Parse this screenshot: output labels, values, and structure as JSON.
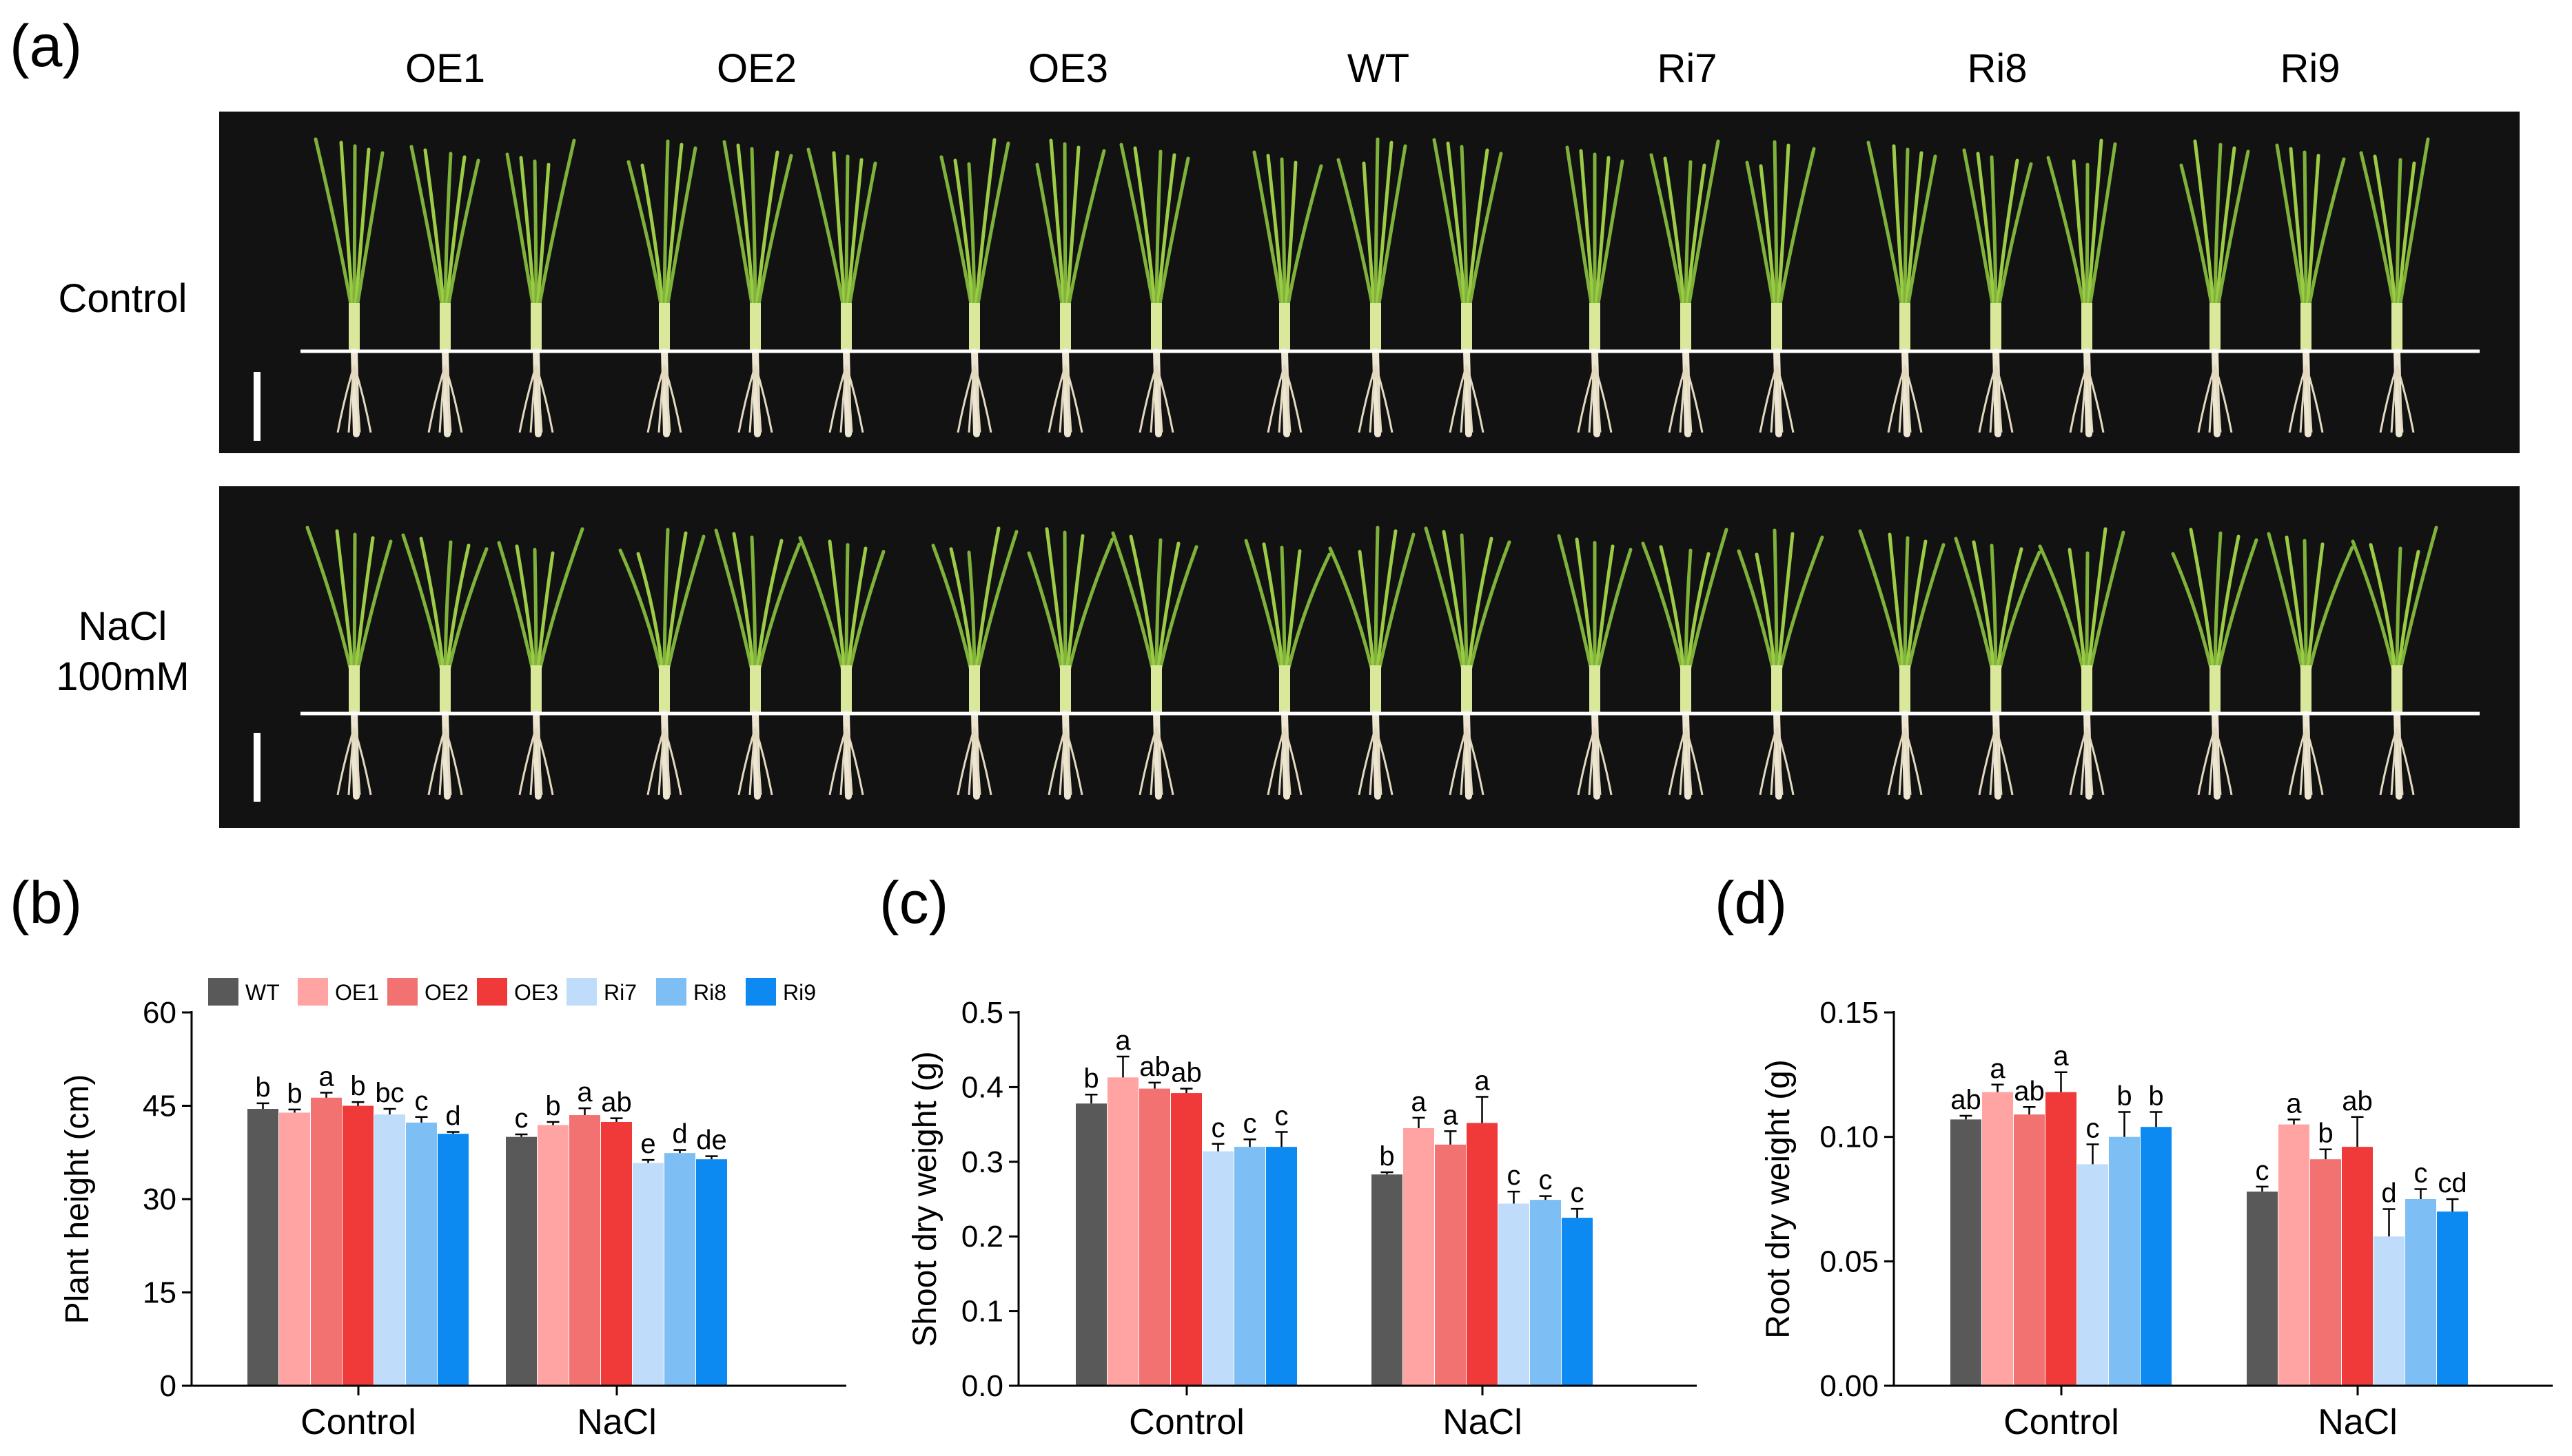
{
  "panels": {
    "a": "(a)",
    "b": "(b)",
    "c": "(c)",
    "d": "(d)"
  },
  "photo": {
    "columns": [
      "OE1",
      "OE2",
      "OE3",
      "WT",
      "Ri7",
      "Ri8",
      "Ri9"
    ],
    "rows": [
      {
        "label_line1": "Control",
        "label_line2": ""
      },
      {
        "label_line1": "NaCl",
        "label_line2": "100mM"
      }
    ]
  },
  "legend": {
    "entries": [
      {
        "name": "WT",
        "color": "#595959"
      },
      {
        "name": "OE1",
        "color": "#FFA3A3"
      },
      {
        "name": "OE2",
        "color": "#F27272"
      },
      {
        "name": "OE3",
        "color": "#F03A3A"
      },
      {
        "name": "Ri7",
        "color": "#BFDDFA"
      },
      {
        "name": "Ri8",
        "color": "#7DBEF5"
      },
      {
        "name": "Ri9",
        "color": "#0D8AF2"
      }
    ]
  },
  "chart_data": [
    {
      "id": "b",
      "type": "bar",
      "categories": [
        "Control",
        "NaCl"
      ],
      "ylabel": "Plant height (cm)",
      "ylim": [
        0,
        60
      ],
      "yticks": [
        0,
        15,
        30,
        45,
        60
      ],
      "grid": false,
      "legend": "top",
      "series": [
        {
          "name": "WT",
          "values": [
            44.5,
            40.0
          ],
          "errors": [
            0.9,
            0.4
          ],
          "letters": [
            "b",
            "c"
          ]
        },
        {
          "name": "OE1",
          "values": [
            43.9,
            41.9
          ],
          "errors": [
            0.5,
            0.5
          ],
          "letters": [
            "b",
            "b"
          ]
        },
        {
          "name": "OE2",
          "values": [
            46.3,
            43.5
          ],
          "errors": [
            0.8,
            1.1
          ],
          "letters": [
            "a",
            "a"
          ]
        },
        {
          "name": "OE3",
          "values": [
            45.0,
            42.4
          ],
          "errors": [
            0.6,
            0.6
          ],
          "letters": [
            "b",
            "ab"
          ]
        },
        {
          "name": "Ri7",
          "values": [
            43.6,
            35.8
          ],
          "errors": [
            0.9,
            0.5
          ],
          "letters": [
            "bc",
            "e"
          ]
        },
        {
          "name": "Ri8",
          "values": [
            42.3,
            37.4
          ],
          "errors": [
            0.9,
            0.5
          ],
          "letters": [
            "c",
            "d"
          ]
        },
        {
          "name": "Ri9",
          "values": [
            40.5,
            36.4
          ],
          "errors": [
            0.3,
            0.5
          ],
          "letters": [
            "d",
            "de"
          ]
        }
      ]
    },
    {
      "id": "c",
      "type": "bar",
      "categories": [
        "Control",
        "NaCl"
      ],
      "ylabel": "Shoot dry weight (g)",
      "ylim": [
        0,
        0.5
      ],
      "yticks": [
        "0.0",
        "0.1",
        "0.2",
        "0.3",
        "0.4",
        "0.5"
      ],
      "grid": false,
      "series": [
        {
          "name": "WT",
          "values": [
            0.378,
            0.283
          ],
          "errors": [
            0.012,
            0.003
          ],
          "letters": [
            "b",
            "b"
          ]
        },
        {
          "name": "OE1",
          "values": [
            0.413,
            0.345
          ],
          "errors": [
            0.028,
            0.014
          ],
          "letters": [
            "a",
            "a"
          ]
        },
        {
          "name": "OE2",
          "values": [
            0.398,
            0.323
          ],
          "errors": [
            0.008,
            0.018
          ],
          "letters": [
            "ab",
            "a"
          ]
        },
        {
          "name": "OE3",
          "values": [
            0.392,
            0.352
          ],
          "errors": [
            0.006,
            0.035
          ],
          "letters": [
            "ab",
            "a"
          ]
        },
        {
          "name": "Ri7",
          "values": [
            0.314,
            0.244
          ],
          "errors": [
            0.01,
            0.016
          ],
          "letters": [
            "c",
            "c"
          ]
        },
        {
          "name": "Ri8",
          "values": [
            0.32,
            0.249
          ],
          "errors": [
            0.01,
            0.005
          ],
          "letters": [
            "c",
            "c"
          ]
        },
        {
          "name": "Ri9",
          "values": [
            0.32,
            0.225
          ],
          "errors": [
            0.02,
            0.012
          ],
          "letters": [
            "c",
            "c"
          ]
        }
      ]
    },
    {
      "id": "d",
      "type": "bar",
      "categories": [
        "Control",
        "NaCl"
      ],
      "ylabel": "Root dry weight (g)",
      "ylim": [
        0,
        0.15
      ],
      "yticks": [
        "0.00",
        "0.05",
        "0.10",
        "0.15"
      ],
      "grid": false,
      "series": [
        {
          "name": "WT",
          "values": [
            0.107,
            0.078
          ],
          "errors": [
            0.0015,
            0.002
          ],
          "letters": [
            "ab",
            "c"
          ]
        },
        {
          "name": "OE1",
          "values": [
            0.118,
            0.105
          ],
          "errors": [
            0.003,
            0.002
          ],
          "letters": [
            "a",
            "a"
          ]
        },
        {
          "name": "OE2",
          "values": [
            0.109,
            0.091
          ],
          "errors": [
            0.003,
            0.004
          ],
          "letters": [
            "ab",
            "b"
          ]
        },
        {
          "name": "OE3",
          "values": [
            0.118,
            0.096
          ],
          "errors": [
            0.008,
            0.012
          ],
          "letters": [
            "a",
            "ab"
          ]
        },
        {
          "name": "Ri7",
          "values": [
            0.089,
            0.06
          ],
          "errors": [
            0.008,
            0.011
          ],
          "letters": [
            "c",
            "d"
          ]
        },
        {
          "name": "Ri8",
          "values": [
            0.1,
            0.075
          ],
          "errors": [
            0.01,
            0.004
          ],
          "letters": [
            "b",
            "c"
          ]
        },
        {
          "name": "Ri9",
          "values": [
            0.104,
            0.07
          ],
          "errors": [
            0.006,
            0.005
          ],
          "letters": [
            "b",
            "cd"
          ]
        }
      ]
    }
  ]
}
